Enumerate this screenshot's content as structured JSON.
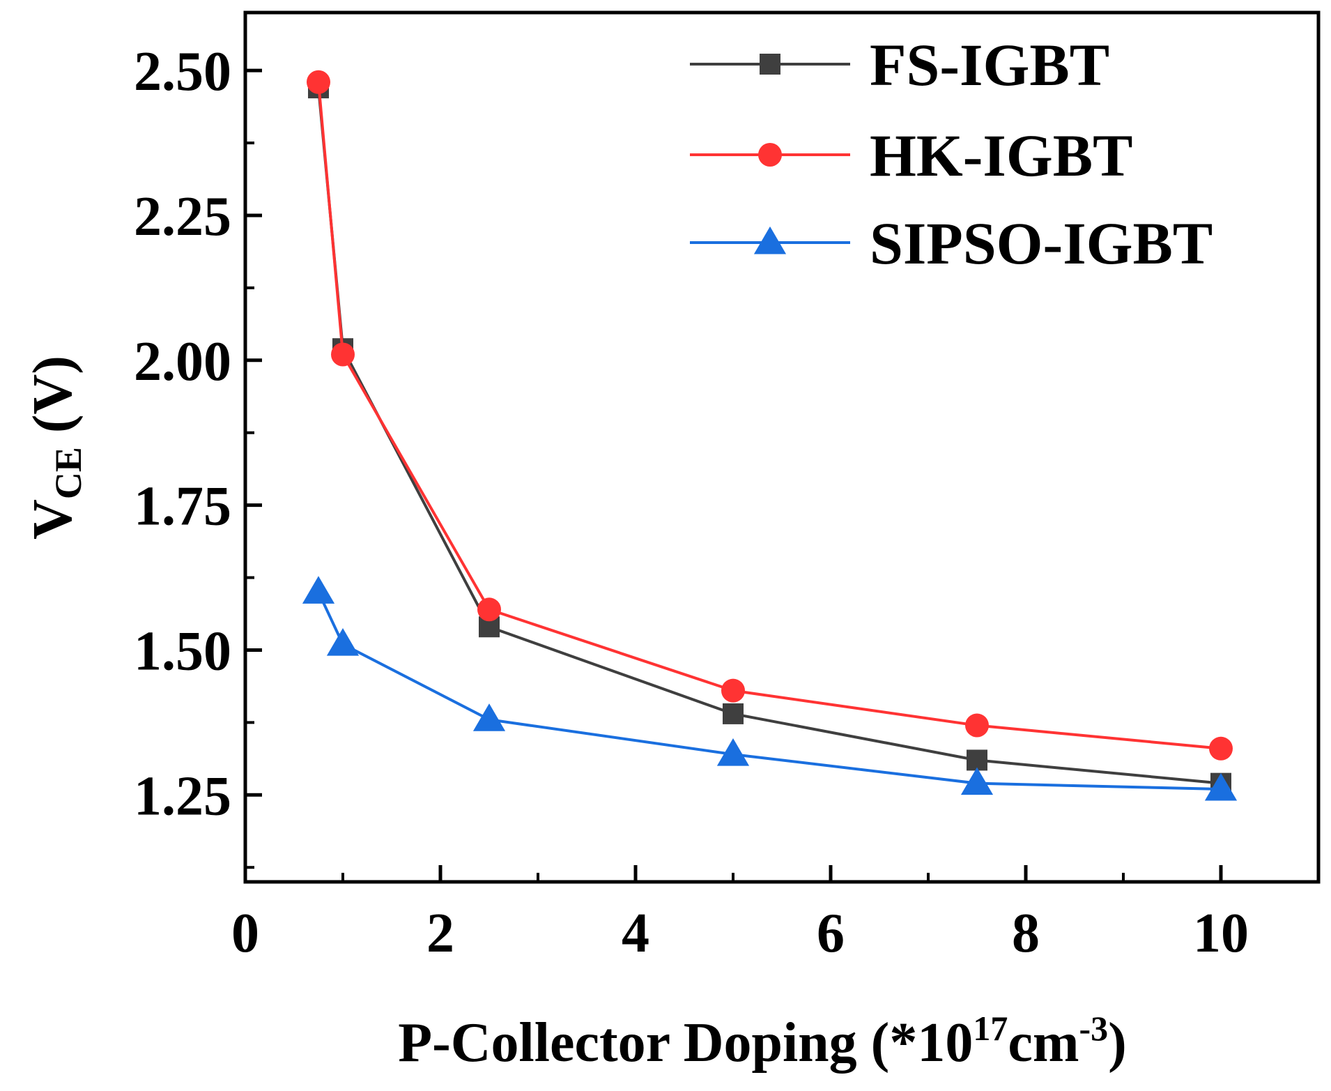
{
  "chart_data": {
    "type": "line",
    "xlabel": {
      "prefix": "P-Collector Doping (*10",
      "sup1": "17",
      "mid": "cm",
      "sup2": "-3",
      "suffix": ")"
    },
    "ylabel": {
      "main": "V",
      "sub": "CE",
      "suffix": " (V)"
    },
    "xlim": [
      0,
      11
    ],
    "ylim": [
      1.1,
      2.6
    ],
    "x_ticks": [
      0,
      2,
      4,
      6,
      8,
      10
    ],
    "x_tick_labels": [
      "0",
      "2",
      "4",
      "6",
      "8",
      "10"
    ],
    "y_ticks": [
      1.25,
      1.5,
      1.75,
      2.0,
      2.25,
      2.5
    ],
    "y_tick_labels": [
      "1.25",
      "1.50",
      "1.75",
      "2.00",
      "2.25",
      "2.50"
    ],
    "x_minor_ticks": [
      1,
      3,
      5,
      7,
      9
    ],
    "y_minor_ticks": [
      1.125,
      1.375,
      1.625,
      1.875,
      2.125,
      2.375
    ],
    "grid": false,
    "legend_position": "top-right",
    "series": [
      {
        "name": "FS-IGBT",
        "color": "#3f3f3f",
        "marker": "square",
        "x": [
          0.75,
          1,
          2.5,
          5,
          7.5,
          10
        ],
        "y": [
          2.47,
          2.02,
          1.54,
          1.39,
          1.31,
          1.27
        ]
      },
      {
        "name": "HK-IGBT",
        "color": "#ff3333",
        "marker": "circle",
        "x": [
          0.75,
          1,
          2.5,
          5,
          7.5,
          10
        ],
        "y": [
          2.48,
          2.01,
          1.57,
          1.43,
          1.37,
          1.33
        ]
      },
      {
        "name": "SIPSO-IGBT",
        "color": "#1a6fdf",
        "marker": "triangle",
        "x": [
          0.75,
          1,
          2.5,
          5,
          7.5,
          10
        ],
        "y": [
          1.6,
          1.51,
          1.38,
          1.32,
          1.27,
          1.26
        ]
      }
    ]
  }
}
